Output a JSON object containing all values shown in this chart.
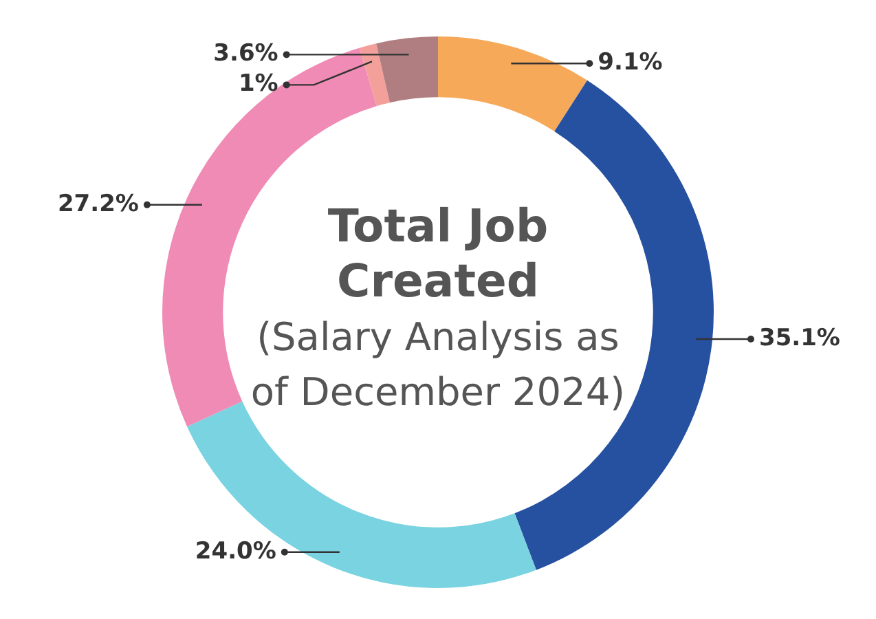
{
  "chart_data": {
    "type": "donut",
    "title": "Total Job Created",
    "subtitle": "(Salary Analysis as of December 2024)",
    "categories": [
      null,
      null,
      null,
      null,
      null,
      null
    ],
    "values": [
      9.1,
      35.1,
      24.0,
      27.2,
      1,
      3.6
    ],
    "value_labels": [
      "9.1%",
      "35.1%",
      "24.0%",
      "27.2%",
      "1%",
      "3.6%"
    ],
    "colors": [
      "#f7a95a",
      "#2650a0",
      "#7ad3e0",
      "#f08bb5",
      "#f4a09a",
      "#b07e80"
    ],
    "legend": false
  }
}
